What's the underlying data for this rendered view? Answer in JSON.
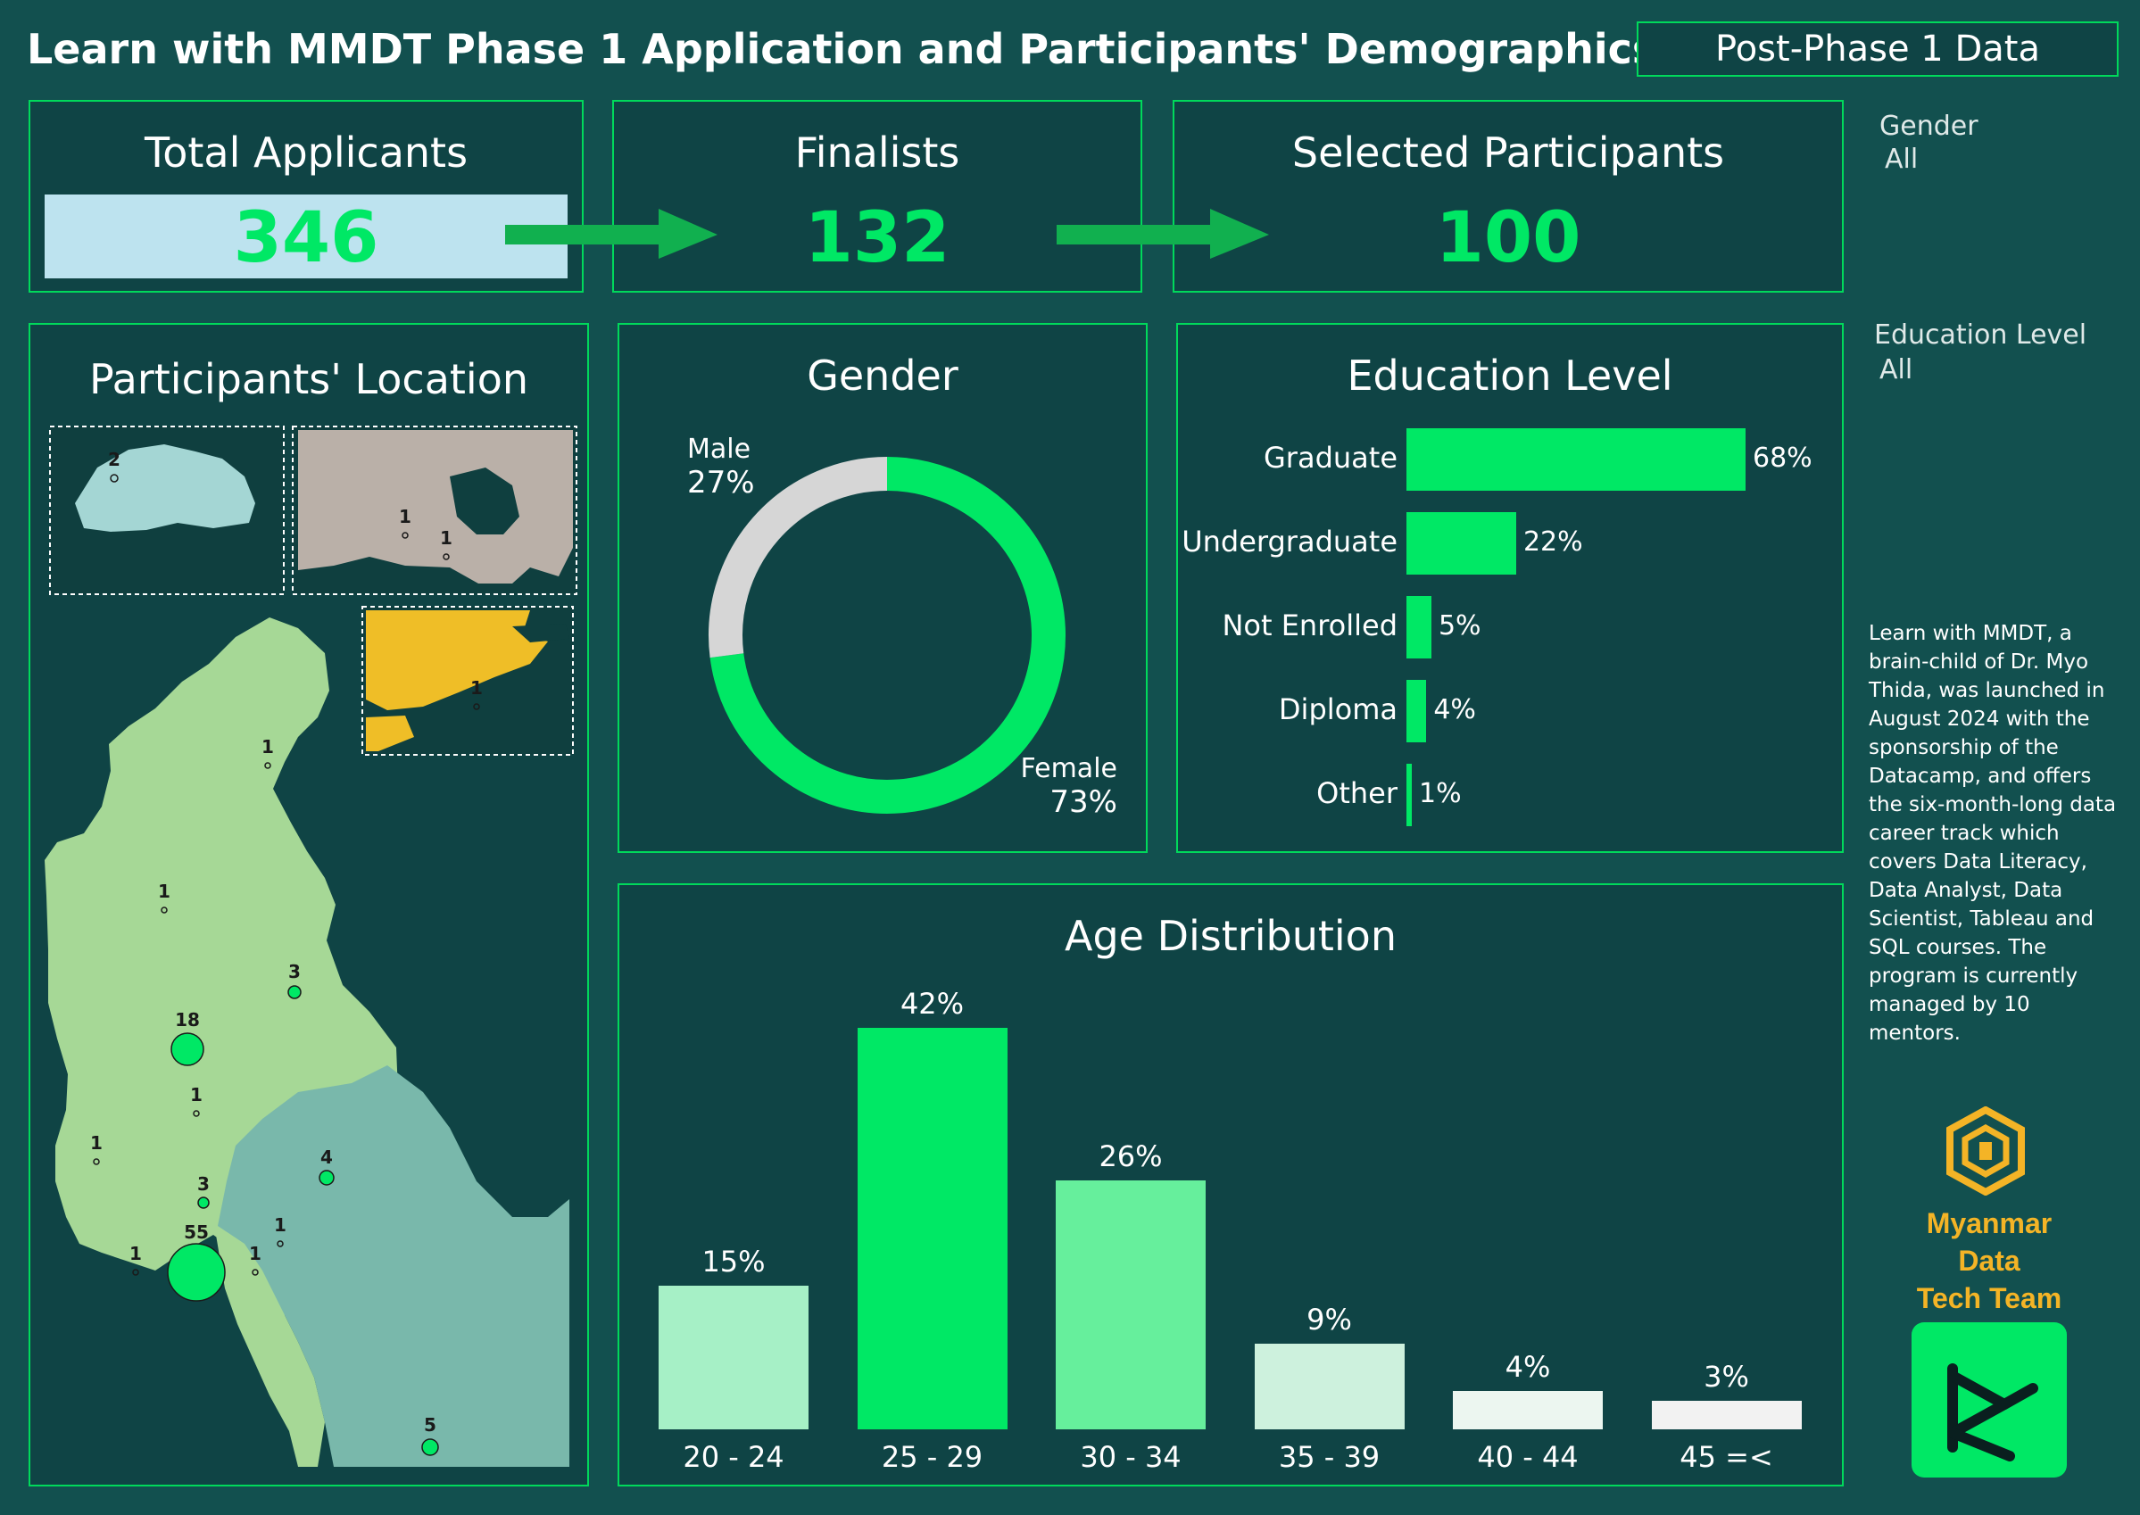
{
  "header": {
    "title": "Learn with MMDT Phase 1 Application and Participants' Demographics",
    "tab_button": "Post-Phase 1 Data"
  },
  "kpis": [
    {
      "label": "Total Applicants",
      "value": "346"
    },
    {
      "label": "Finalists",
      "value": "132"
    },
    {
      "label": "Selected Participants",
      "value": "100"
    }
  ],
  "slicers": {
    "gender": {
      "label": "Gender",
      "value": "All"
    },
    "education": {
      "label": "Education Level",
      "value": "All"
    }
  },
  "location": {
    "title": "Participants' Location",
    "counts": [
      "2",
      "1",
      "1",
      "1",
      "1",
      "1",
      "3",
      "18",
      "1",
      "1",
      "4",
      "3",
      "55",
      "1",
      "1",
      "1",
      "5"
    ]
  },
  "description": "Learn with MMDT, a brain-child of Dr. Myo Thida, was launched in August 2024 with the sponsorship of the Datacamp, and offers the six-month-long data career track which covers Data Literacy, Data Analyst, Data Scientist, Tableau and SQL courses. The program is currently managed by 10 mentors.",
  "logos": {
    "mmdt_text_line1": "Myanmar Data",
    "mmdt_text_line2": "Tech Team"
  },
  "colors": {
    "background": "#12504f",
    "panel": "#0f4445",
    "accent": "#00e865",
    "border": "#00d95b"
  },
  "chart_data": [
    {
      "type": "pie",
      "title": "Gender",
      "categories": [
        "Male",
        "Female"
      ],
      "values": [
        27,
        73
      ],
      "labels": [
        "27%",
        "73%"
      ],
      "colors": [
        "#d6d6d6",
        "#00e865"
      ]
    },
    {
      "type": "bar",
      "orientation": "horizontal",
      "title": "Education Level",
      "categories": [
        "Graduate",
        "Undergraduate",
        "Not Enrolled",
        "Diploma",
        "Other"
      ],
      "values": [
        68,
        22,
        5,
        4,
        1
      ],
      "labels": [
        "68%",
        "22%",
        "5%",
        "4%",
        "1%"
      ]
    },
    {
      "type": "bar",
      "title": "Age Distribution",
      "categories": [
        "20 - 24",
        "25 - 29",
        "30 - 34",
        "35 - 39",
        "40 - 44",
        "45 =<"
      ],
      "values": [
        15,
        42,
        26,
        9,
        4,
        3
      ],
      "labels": [
        "15%",
        "42%",
        "26%",
        "9%",
        "4%",
        "3%"
      ],
      "colors": [
        "#a6f0c6",
        "#00e865",
        "#66ef9c",
        "#cdf1dd",
        "#ecf6f0",
        "#f2f2f2"
      ]
    }
  ]
}
